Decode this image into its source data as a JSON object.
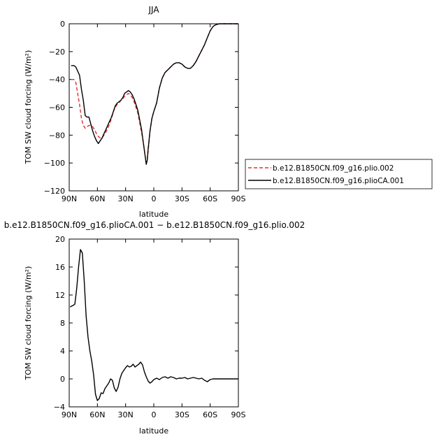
{
  "chart_data": [
    {
      "type": "line",
      "title": "JJA",
      "xlabel": "latitude",
      "ylabel": "TOM SW cloud forcing (W/m²)",
      "xlim": [
        90,
        -90
      ],
      "ylim": [
        -120,
        0
      ],
      "xticks": [
        90,
        60,
        30,
        0,
        -30,
        -60,
        -90
      ],
      "xtick_labels": [
        "90N",
        "60N",
        "30N",
        "0",
        "30S",
        "60S",
        "90S"
      ],
      "yticks": [
        0,
        -20,
        -40,
        -60,
        -80,
        -100,
        -120
      ],
      "ytick_labels": [
        "0",
        "−20",
        "−40",
        "−60",
        "−80",
        "−100",
        "−120"
      ],
      "legend_position": "right-bottom outside",
      "series": [
        {
          "name": "b.e12.B1850CN.f09_g16.plio.002",
          "color": "#e03030",
          "dash": "dashed",
          "x": [
            88,
            85,
            83,
            81,
            79,
            77,
            75,
            73,
            71,
            69,
            67,
            65,
            63,
            61,
            59,
            57,
            55,
            53,
            51,
            49,
            47,
            45,
            43,
            41,
            39,
            37,
            35,
            33,
            31,
            29,
            27,
            25,
            23,
            21,
            19,
            17,
            15,
            13,
            11,
            9,
            8,
            7,
            6,
            4,
            2,
            0,
            -3,
            -6,
            -9,
            -12,
            -15,
            -18,
            -21,
            -24,
            -27,
            -30,
            -33,
            -36,
            -39,
            -42,
            -45,
            -48,
            -51,
            -54,
            -57,
            -60,
            -63,
            -65,
            -67,
            -70,
            -75,
            -80,
            -85,
            -90
          ],
          "y": [
            -40,
            -40,
            -42,
            -50,
            -58,
            -68,
            -73,
            -75,
            -74,
            -73,
            -73,
            -74,
            -76,
            -79,
            -81,
            -82,
            -82,
            -80,
            -78,
            -75,
            -72,
            -68,
            -63,
            -60,
            -58,
            -57,
            -55,
            -54,
            -52,
            -51,
            -50,
            -51,
            -53,
            -56,
            -60,
            -64,
            -71,
            -78,
            -86,
            -96,
            -100,
            -98,
            -92,
            -77,
            -68,
            -63,
            -57,
            -46,
            -39,
            -35,
            -33,
            -31,
            -29,
            -28,
            -28,
            -29,
            -31,
            -32,
            -32,
            -30,
            -27,
            -23,
            -19,
            -15,
            -10,
            -5,
            -2,
            -1,
            -0.5,
            0,
            0,
            0,
            0,
            0
          ]
        },
        {
          "name": "b.e12.B1850CN.f09_g16.plioCA.001",
          "color": "#000000",
          "dash": "solid",
          "x": [
            88,
            85,
            83,
            81,
            79,
            77,
            75,
            73,
            71,
            69,
            67,
            65,
            63,
            61,
            59,
            57,
            55,
            53,
            51,
            49,
            47,
            45,
            43,
            41,
            39,
            37,
            35,
            33,
            31,
            29,
            27,
            25,
            23,
            21,
            19,
            17,
            15,
            13,
            11,
            9,
            8,
            7,
            6,
            4,
            2,
            0,
            -3,
            -6,
            -9,
            -12,
            -15,
            -18,
            -21,
            -24,
            -27,
            -30,
            -33,
            -36,
            -39,
            -42,
            -45,
            -48,
            -51,
            -54,
            -57,
            -60,
            -63,
            -65,
            -67,
            -70,
            -75,
            -80,
            -85,
            -90
          ],
          "y": [
            -30,
            -30,
            -31,
            -34,
            -37,
            -47,
            -55,
            -66,
            -67,
            -67,
            -72,
            -77,
            -81,
            -84,
            -86,
            -84,
            -82,
            -79,
            -76,
            -73,
            -70,
            -67,
            -63,
            -59,
            -57,
            -56,
            -55,
            -53,
            -50,
            -49,
            -48,
            -49,
            -51,
            -54,
            -58,
            -62,
            -69,
            -76,
            -86,
            -96,
            -101,
            -98,
            -90,
            -77,
            -68,
            -63,
            -57,
            -46,
            -39,
            -35,
            -33,
            -31,
            -29,
            -28,
            -28,
            -29,
            -31,
            -32,
            -32,
            -30,
            -27,
            -23,
            -19,
            -15,
            -10,
            -5,
            -2,
            -1,
            -0.5,
            0,
            0,
            0,
            0,
            0
          ]
        }
      ]
    },
    {
      "type": "line",
      "title": "b.e12.B1850CN.f09_g16.plioCA.001 − b.e12.B1850CN.f09_g16.plio.002",
      "xlabel": "latitude",
      "ylabel": "TOM SW cloud forcing (W/m²)",
      "xlim": [
        90,
        -90
      ],
      "ylim": [
        -4,
        20
      ],
      "xticks": [
        90,
        60,
        30,
        0,
        -30,
        -60,
        -90
      ],
      "xtick_labels": [
        "90N",
        "60N",
        "30N",
        "0",
        "30S",
        "60S",
        "90S"
      ],
      "yticks": [
        -4,
        0,
        4,
        8,
        12,
        16,
        20
      ],
      "ytick_labels": [
        "−4",
        "0",
        "4",
        "8",
        "12",
        "16",
        "20"
      ],
      "series": [
        {
          "color": "#000000",
          "dash": "solid",
          "x": [
            89,
            86,
            84,
            82,
            80,
            78,
            76,
            74,
            72,
            70,
            68,
            66,
            64,
            62,
            60,
            58,
            56,
            54,
            52,
            50,
            48,
            46,
            44,
            42,
            40,
            38,
            36,
            34,
            32,
            30,
            28,
            26,
            24,
            22,
            20,
            18,
            16,
            14,
            12,
            10,
            8,
            6,
            4,
            2,
            0,
            -3,
            -6,
            -9,
            -12,
            -15,
            -18,
            -21,
            -24,
            -27,
            -30,
            -33,
            -36,
            -39,
            -42,
            -45,
            -48,
            -51,
            -54,
            -57,
            -60,
            -63,
            -66,
            -70,
            -75,
            -80,
            -85,
            -90
          ],
          "y": [
            10.3,
            10.5,
            10.7,
            13,
            16,
            18.5,
            18,
            14,
            9,
            6,
            4,
            2.5,
            0.5,
            -2.2,
            -3.1,
            -2.8,
            -2.0,
            -2.1,
            -1.4,
            -1.0,
            -0.6,
            0,
            -0.2,
            -1.3,
            -1.8,
            -1.2,
            0,
            0.8,
            1.2,
            1.6,
            1.9,
            1.7,
            1.8,
            2.1,
            1.7,
            1.9,
            2.1,
            2.4,
            2.0,
            1.0,
            0.3,
            -0.3,
            -0.6,
            -0.4,
            -0.1,
            0.1,
            -0.1,
            0.2,
            0.3,
            0.1,
            0.3,
            0.2,
            0,
            0.1,
            0.1,
            0.2,
            0,
            0.1,
            0.2,
            0.1,
            0,
            0.1,
            -0.2,
            -0.4,
            -0.1,
            0,
            0,
            0,
            0,
            0,
            0,
            0
          ]
        }
      ]
    }
  ]
}
